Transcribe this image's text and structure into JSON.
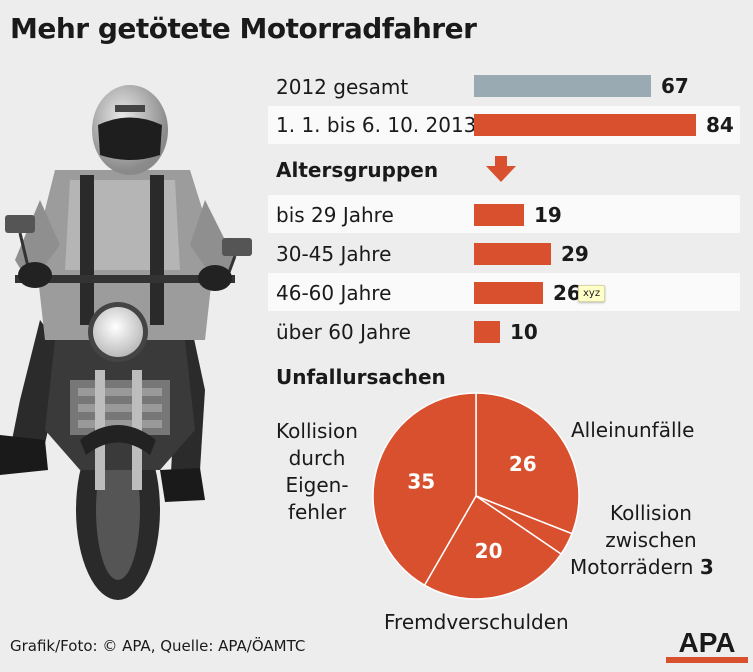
{
  "title": "Mehr getötete Motorradfahrer",
  "colors": {
    "gray_bar": "#9aaab3",
    "red": "#d9502e",
    "background": "#ededed",
    "row_highlight": "#fafafa"
  },
  "sections": {
    "age": "Altersgruppen",
    "causes": "Unfallursachen"
  },
  "tooltip": "xyz",
  "pie_labels": {
    "kollision_eigen": [
      "Kollision",
      "durch",
      "Eigen-",
      "fehler"
    ],
    "allein": "Alleinunfälle",
    "kollision_zwischen": [
      "Kollision",
      "zwischen",
      "Motorrädern"
    ],
    "fremd": "Fremdverschulden"
  },
  "footer": "Grafik/Foto: © APA, Quelle: APA/ÖAMTC",
  "logo": "APA",
  "photo": {
    "icon": "motorcyclist-photo"
  },
  "chart_data": [
    {
      "type": "bar",
      "categories": [
        "2012 gesamt",
        "1. 1. bis 6. 10. 2013"
      ],
      "values": [
        67,
        84
      ],
      "colors": [
        "#9aaab3",
        "#d9502e"
      ],
      "xlim": [
        0,
        84
      ]
    },
    {
      "type": "bar",
      "title": "Altersgruppen",
      "categories": [
        "bis 29 Jahre",
        "30-45 Jahre",
        "46-60 Jahre",
        "über 60 Jahre"
      ],
      "values": [
        19,
        29,
        26,
        10
      ],
      "xlim": [
        0,
        84
      ]
    },
    {
      "type": "pie",
      "title": "Unfallursachen",
      "categories": [
        "Alleinunfälle",
        "Kollision zwischen Motorrädern",
        "Fremdverschulden",
        "Kollision durch Eigenfehler"
      ],
      "values": [
        26,
        3,
        20,
        35
      ]
    }
  ]
}
